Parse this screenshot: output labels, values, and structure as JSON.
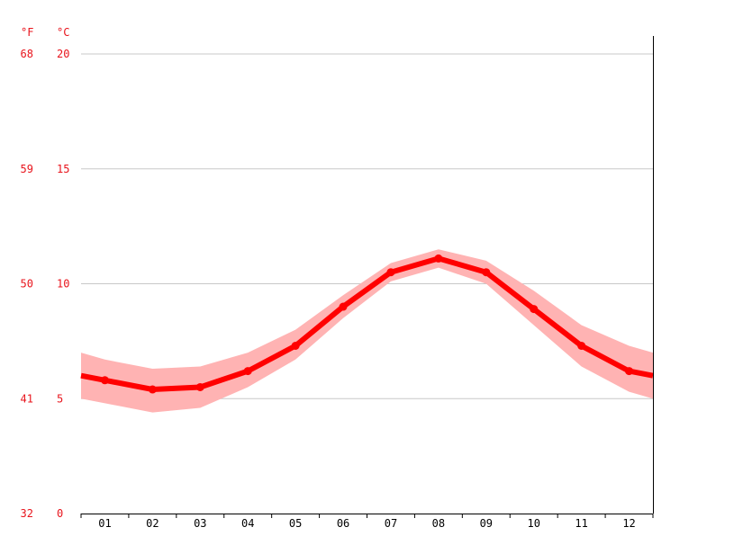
{
  "chart_data": {
    "type": "line",
    "units": {
      "fahrenheit": "°F",
      "celsius": "°C"
    },
    "categories": [
      "01",
      "02",
      "03",
      "04",
      "05",
      "06",
      "07",
      "08",
      "09",
      "10",
      "11",
      "12"
    ],
    "x_range": [
      0.5,
      12.5
    ],
    "ylim_celsius": [
      0,
      20
    ],
    "y_ticks_celsius": [
      "0",
      "5",
      "10",
      "15",
      "20"
    ],
    "y_ticks_fahrenheit": [
      "32",
      "41",
      "50",
      "59",
      "68"
    ],
    "grid": true,
    "series": [
      {
        "values": [
          5.8,
          5.4,
          5.5,
          6.2,
          7.3,
          9.0,
          10.5,
          11.1,
          10.5,
          8.9,
          7.3,
          6.2
        ],
        "band_upper": [
          6.7,
          6.3,
          6.4,
          7.0,
          8.0,
          9.5,
          10.9,
          11.5,
          11.0,
          9.7,
          8.2,
          7.3
        ],
        "band_lower": [
          4.8,
          4.4,
          4.6,
          5.5,
          6.7,
          8.5,
          10.1,
          10.7,
          10.0,
          8.2,
          6.4,
          5.3
        ],
        "edge_values": [
          6.0,
          6.0
        ],
        "edge_band_upper": [
          7.0,
          7.0
        ],
        "edge_band_lower": [
          5.0,
          5.0
        ]
      }
    ],
    "colors": {
      "line": "#ff0000",
      "band": "#ffb3b3",
      "tick_text": "#e8141c",
      "grid": "#c8c8c8",
      "axis": "#000000"
    }
  }
}
